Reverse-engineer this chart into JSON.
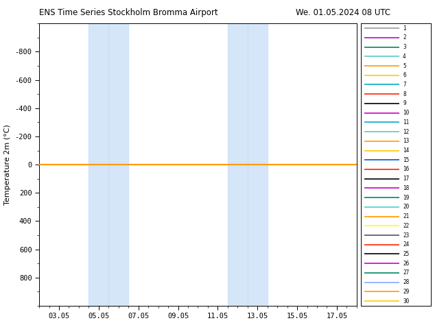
{
  "title_left": "ENS Time Series Stockholm Bromma Airport",
  "title_right": "We. 01.05.2024 08 UTC",
  "ylabel": "Temperature 2m (°C)",
  "ylim": [
    -1000,
    1000
  ],
  "yticks": [
    -800,
    -600,
    -400,
    -200,
    0,
    200,
    400,
    600,
    800
  ],
  "xtick_labels": [
    "03.05",
    "05.05",
    "07.05",
    "09.05",
    "11.05",
    "13.05",
    "15.05",
    "17.05"
  ],
  "xtick_positions": [
    2,
    4,
    6,
    8,
    10,
    12,
    14,
    16
  ],
  "xlim": [
    1,
    17
  ],
  "shaded_regions": [
    [
      3.5,
      4.5
    ],
    [
      4.5,
      5.5
    ],
    [
      10.5,
      11.5
    ],
    [
      11.5,
      12.5
    ]
  ],
  "shaded_color": "#ddeeff",
  "n_members": 30,
  "line_colors": [
    "#999999",
    "#cc00cc",
    "#008866",
    "#55cccc",
    "#ff9900",
    "#ffcc00",
    "#00aacc",
    "#ff2200",
    "#000000",
    "#cc00cc",
    "#00aacc",
    "#55cccc",
    "#ff9900",
    "#ffcc00",
    "#0055cc",
    "#ff2200",
    "#000000",
    "#cc00cc",
    "#008866",
    "#55cccc",
    "#ff9900",
    "#ffff00",
    "#555555",
    "#ff2200",
    "#000000",
    "#cc00cc",
    "#008866",
    "#88aaff",
    "#ff9900",
    "#ffcc00"
  ],
  "highlight_member": 21,
  "highlight_color": "#ffff00",
  "line_value": 0,
  "background_color": "#ffffff",
  "figsize": [
    6.34,
    4.9
  ],
  "dpi": 100,
  "title_fontsize": 8.5,
  "axis_fontsize": 7.5,
  "legend_fontsize": 5.5
}
